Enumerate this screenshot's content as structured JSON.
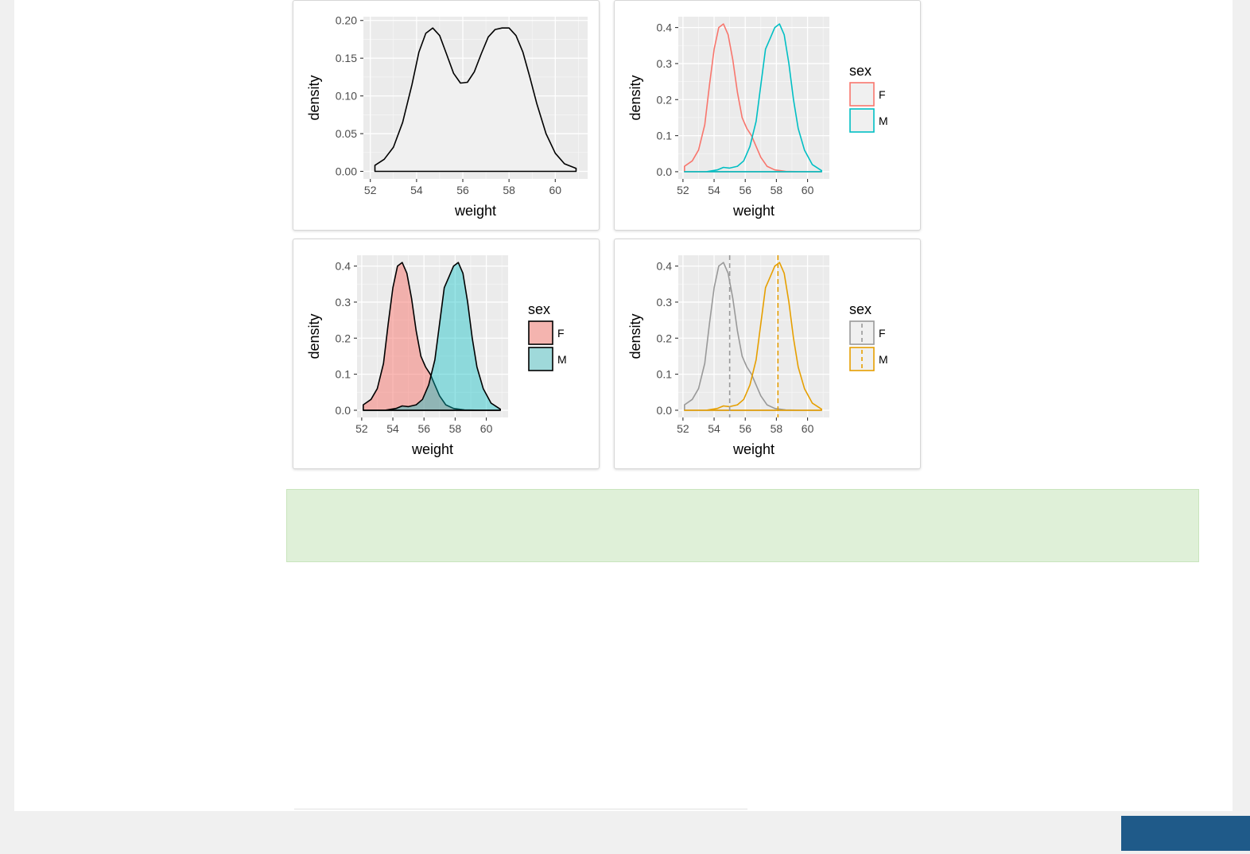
{
  "chart_data": [
    {
      "type": "line",
      "title": "",
      "xlabel": "weight",
      "ylabel": "density",
      "xlim": [
        51.7,
        61.4
      ],
      "ylim": [
        -0.01,
        0.205
      ],
      "xticks": [
        52,
        54,
        56,
        58,
        60
      ],
      "yticks": [
        0.0,
        0.05,
        0.1,
        0.15,
        0.2
      ],
      "ytick_labels": [
        "0.00",
        "0.05",
        "0.10",
        "0.15",
        "0.20"
      ],
      "grid": true,
      "legend": null,
      "series": [
        {
          "fill": "#f0f0f0",
          "stroke": "#000000",
          "dashed": false,
          "x": [
            52.2,
            52.6,
            53.0,
            53.4,
            53.8,
            54.1,
            54.4,
            54.7,
            55.0,
            55.3,
            55.6,
            55.9,
            56.2,
            56.5,
            56.8,
            57.1,
            57.4,
            57.7,
            58.0,
            58.3,
            58.6,
            58.9,
            59.2,
            59.6,
            60.0,
            60.4,
            60.9
          ],
          "y": [
            0.008,
            0.016,
            0.032,
            0.065,
            0.115,
            0.158,
            0.183,
            0.19,
            0.18,
            0.155,
            0.13,
            0.117,
            0.118,
            0.132,
            0.156,
            0.178,
            0.188,
            0.19,
            0.19,
            0.18,
            0.158,
            0.125,
            0.09,
            0.05,
            0.024,
            0.01,
            0.004
          ]
        }
      ]
    },
    {
      "type": "line",
      "title": "",
      "xlabel": "weight",
      "ylabel": "density",
      "xlim": [
        51.7,
        61.4
      ],
      "ylim": [
        -0.02,
        0.43
      ],
      "xticks": [
        52,
        54,
        56,
        58,
        60
      ],
      "yticks": [
        0.0,
        0.1,
        0.2,
        0.3,
        0.4
      ],
      "ytick_labels": [
        "0.0",
        "0.1",
        "0.2",
        "0.3",
        "0.4"
      ],
      "grid": true,
      "legend": {
        "title": "sex",
        "position": "right",
        "entries": [
          "F",
          "M"
        ],
        "key_fill": "#f0f0f0",
        "key_colors": [
          "#f8766d",
          "#00bfc4"
        ],
        "key_fill_colors": null,
        "dashed_keys": false
      },
      "series": [
        {
          "fill": "none",
          "stroke": "#f8766d",
          "dashed": false,
          "x": [
            52.1,
            52.6,
            53.0,
            53.4,
            53.7,
            54.0,
            54.3,
            54.6,
            54.9,
            55.2,
            55.5,
            55.8,
            56.1,
            56.4,
            56.7,
            57.0,
            57.4,
            57.9,
            58.6,
            59.6,
            60.9
          ],
          "y": [
            0.015,
            0.03,
            0.06,
            0.13,
            0.24,
            0.34,
            0.4,
            0.41,
            0.38,
            0.31,
            0.22,
            0.15,
            0.12,
            0.1,
            0.07,
            0.04,
            0.015,
            0.005,
            0.001,
            0.0,
            0.0
          ]
        },
        {
          "fill": "none",
          "stroke": "#00bfc4",
          "dashed": false,
          "x": [
            52.1,
            53.5,
            54.2,
            54.6,
            55.0,
            55.5,
            55.9,
            56.3,
            56.7,
            57.0,
            57.3,
            57.6,
            57.9,
            58.2,
            58.5,
            58.8,
            59.1,
            59.4,
            59.8,
            60.3,
            60.9
          ],
          "y": [
            0.0,
            0.0,
            0.005,
            0.012,
            0.01,
            0.015,
            0.03,
            0.07,
            0.14,
            0.24,
            0.34,
            0.37,
            0.4,
            0.41,
            0.38,
            0.3,
            0.2,
            0.12,
            0.06,
            0.02,
            0.003
          ]
        }
      ]
    },
    {
      "type": "area",
      "title": "",
      "xlabel": "weight",
      "ylabel": "density",
      "xlim": [
        51.7,
        61.4
      ],
      "ylim": [
        -0.02,
        0.43
      ],
      "xticks": [
        52,
        54,
        56,
        58,
        60
      ],
      "yticks": [
        0.0,
        0.1,
        0.2,
        0.3,
        0.4
      ],
      "ytick_labels": [
        "0.0",
        "0.1",
        "0.2",
        "0.3",
        "0.4"
      ],
      "grid": true,
      "legend": {
        "title": "sex",
        "position": "right",
        "entries": [
          "F",
          "M"
        ],
        "key_fill": null,
        "key_colors": [
          "#000000",
          "#000000"
        ],
        "key_fill_colors": [
          "#f4b4af",
          "#9fd9da"
        ],
        "dashed_keys": false
      },
      "series": [
        {
          "fill": "#f8766d",
          "fill_opacity": 0.5,
          "stroke": "#000000",
          "dashed": false,
          "x": [
            52.1,
            52.6,
            53.0,
            53.4,
            53.7,
            54.0,
            54.3,
            54.6,
            54.9,
            55.2,
            55.5,
            55.8,
            56.1,
            56.4,
            56.7,
            57.0,
            57.4,
            57.9,
            58.6,
            59.6,
            60.9
          ],
          "y": [
            0.015,
            0.03,
            0.06,
            0.13,
            0.24,
            0.34,
            0.4,
            0.41,
            0.38,
            0.31,
            0.22,
            0.15,
            0.12,
            0.1,
            0.07,
            0.04,
            0.015,
            0.005,
            0.001,
            0.0,
            0.0
          ]
        },
        {
          "fill": "#00bfc4",
          "fill_opacity": 0.4,
          "stroke": "#000000",
          "dashed": false,
          "x": [
            52.1,
            53.5,
            54.2,
            54.6,
            55.0,
            55.5,
            55.9,
            56.3,
            56.7,
            57.0,
            57.3,
            57.6,
            57.9,
            58.2,
            58.5,
            58.8,
            59.1,
            59.4,
            59.8,
            60.3,
            60.9
          ],
          "y": [
            0.0,
            0.0,
            0.005,
            0.012,
            0.01,
            0.015,
            0.03,
            0.07,
            0.14,
            0.24,
            0.34,
            0.37,
            0.4,
            0.41,
            0.38,
            0.3,
            0.2,
            0.12,
            0.06,
            0.02,
            0.003
          ]
        }
      ]
    },
    {
      "type": "line",
      "title": "",
      "xlabel": "weight",
      "ylabel": "density",
      "xlim": [
        51.7,
        61.4
      ],
      "ylim": [
        -0.02,
        0.43
      ],
      "xticks": [
        52,
        54,
        56,
        58,
        60
      ],
      "yticks": [
        0.0,
        0.1,
        0.2,
        0.3,
        0.4
      ],
      "ytick_labels": [
        "0.0",
        "0.1",
        "0.2",
        "0.3",
        "0.4"
      ],
      "grid": true,
      "legend": {
        "title": "sex",
        "position": "right",
        "entries": [
          "F",
          "M"
        ],
        "key_fill": "#f0f0f0",
        "key_colors": [
          "#999999",
          "#e69f00"
        ],
        "key_fill_colors": null,
        "dashed_keys": true
      },
      "vlines": [
        {
          "x": 55.0,
          "color": "#999999"
        },
        {
          "x": 58.1,
          "color": "#e69f00"
        }
      ],
      "series": [
        {
          "fill": "none",
          "stroke": "#999999",
          "dashed": false,
          "x": [
            52.1,
            52.6,
            53.0,
            53.4,
            53.7,
            54.0,
            54.3,
            54.6,
            54.9,
            55.2,
            55.5,
            55.8,
            56.1,
            56.4,
            56.7,
            57.0,
            57.4,
            57.9,
            58.6,
            59.6,
            60.9
          ],
          "y": [
            0.015,
            0.03,
            0.06,
            0.13,
            0.24,
            0.34,
            0.4,
            0.41,
            0.38,
            0.31,
            0.22,
            0.15,
            0.12,
            0.1,
            0.07,
            0.04,
            0.015,
            0.005,
            0.001,
            0.0,
            0.0
          ]
        },
        {
          "fill": "none",
          "stroke": "#e69f00",
          "dashed": false,
          "x": [
            52.1,
            53.5,
            54.2,
            54.6,
            55.0,
            55.5,
            55.9,
            56.3,
            56.7,
            57.0,
            57.3,
            57.6,
            57.9,
            58.2,
            58.5,
            58.8,
            59.1,
            59.4,
            59.8,
            60.3,
            60.9
          ],
          "y": [
            0.0,
            0.0,
            0.005,
            0.012,
            0.01,
            0.015,
            0.03,
            0.07,
            0.14,
            0.24,
            0.34,
            0.37,
            0.4,
            0.41,
            0.38,
            0.3,
            0.2,
            0.12,
            0.06,
            0.02,
            0.003
          ]
        }
      ]
    }
  ]
}
